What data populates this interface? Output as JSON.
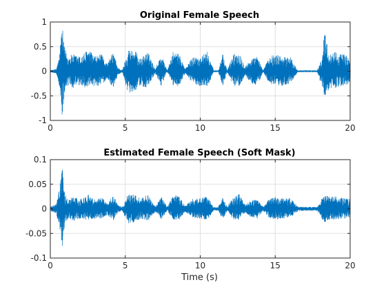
{
  "chart_data": [
    {
      "type": "line",
      "title": "Original Female Speech",
      "xlabel": "",
      "ylabel": "",
      "xlim": [
        0,
        20
      ],
      "ylim": [
        -1,
        1
      ],
      "xticks": [
        0,
        5,
        10,
        15,
        20
      ],
      "xtick_labels": [
        "0",
        "5",
        "10",
        "15",
        "20"
      ],
      "yticks": [
        -1,
        -0.5,
        0,
        0.5,
        1
      ],
      "ytick_labels": [
        "-1",
        "-0.5",
        "0",
        "0.5",
        "1"
      ],
      "grid": true,
      "series_color": "#0072BD",
      "envelope": {
        "x": [
          0,
          0.4,
          0.6,
          0.72,
          0.8,
          0.9,
          1.0,
          1.2,
          1.5,
          2.0,
          2.5,
          3.0,
          3.4,
          3.8,
          4.2,
          4.5,
          4.8,
          5.2,
          5.6,
          6.0,
          6.5,
          7.0,
          7.4,
          7.8,
          8.2,
          8.6,
          9.0,
          9.5,
          10.0,
          10.5,
          10.9,
          11.2,
          11.5,
          11.8,
          12.2,
          12.6,
          13.0,
          13.4,
          13.8,
          14.2,
          14.6,
          15.0,
          15.5,
          16.0,
          16.5,
          17.0,
          17.4,
          17.8,
          18.1,
          18.3,
          18.6,
          19.0,
          19.5,
          20.0
        ],
        "upper": [
          0.02,
          0.05,
          0.3,
          0.75,
          0.93,
          0.55,
          0.45,
          0.3,
          0.35,
          0.3,
          0.45,
          0.3,
          0.35,
          0.15,
          0.4,
          0.08,
          0.02,
          0.45,
          0.45,
          0.25,
          0.4,
          0.05,
          0.35,
          0.02,
          0.4,
          0.35,
          0.05,
          0.3,
          0.3,
          0.4,
          0.02,
          0.02,
          0.35,
          0.02,
          0.35,
          0.4,
          0.1,
          0.25,
          0.3,
          0.02,
          0.3,
          0.35,
          0.3,
          0.3,
          0.02,
          0.02,
          0.02,
          0.02,
          0.25,
          0.85,
          0.35,
          0.4,
          0.35,
          0.3
        ],
        "lower": [
          -0.02,
          -0.05,
          -0.3,
          -0.7,
          -1.0,
          -0.6,
          -0.45,
          -0.3,
          -0.35,
          -0.3,
          -0.35,
          -0.3,
          -0.3,
          -0.15,
          -0.35,
          -0.08,
          -0.02,
          -0.45,
          -0.4,
          -0.3,
          -0.35,
          -0.05,
          -0.3,
          -0.02,
          -0.3,
          -0.3,
          -0.05,
          -0.25,
          -0.3,
          -0.3,
          -0.02,
          -0.02,
          -0.3,
          -0.02,
          -0.3,
          -0.3,
          -0.1,
          -0.25,
          -0.3,
          -0.02,
          -0.25,
          -0.3,
          -0.3,
          -0.25,
          -0.02,
          -0.02,
          -0.02,
          -0.02,
          -0.3,
          -0.55,
          -0.35,
          -0.35,
          -0.3,
          -0.25
        ]
      }
    },
    {
      "type": "line",
      "title": "Estimated Female Speech (Soft Mask)",
      "xlabel": "Time (s)",
      "ylabel": "",
      "xlim": [
        0,
        20
      ],
      "ylim": [
        -0.1,
        0.1
      ],
      "xticks": [
        0,
        5,
        10,
        15,
        20
      ],
      "xtick_labels": [
        "0",
        "5",
        "10",
        "15",
        "20"
      ],
      "yticks": [
        -0.1,
        -0.05,
        0,
        0.05,
        0.1
      ],
      "ytick_labels": [
        "-0.1",
        "-0.05",
        "0",
        "0.05",
        "0.1"
      ],
      "grid": true,
      "series_color": "#0072BD",
      "envelope": {
        "x": [
          0,
          0.4,
          0.6,
          0.72,
          0.8,
          0.9,
          1.0,
          1.2,
          1.5,
          2.0,
          2.5,
          3.0,
          3.4,
          3.8,
          4.2,
          4.5,
          4.8,
          5.2,
          5.6,
          6.0,
          6.5,
          7.0,
          7.4,
          7.8,
          8.2,
          8.6,
          9.0,
          9.5,
          10.0,
          10.5,
          10.9,
          11.2,
          11.5,
          11.8,
          12.2,
          12.6,
          13.0,
          13.4,
          13.8,
          14.2,
          14.6,
          15.0,
          15.5,
          16.0,
          16.5,
          17.0,
          17.4,
          17.8,
          18.1,
          18.3,
          18.6,
          19.0,
          19.5,
          20.0
        ],
        "upper": [
          0.004,
          0.01,
          0.04,
          0.07,
          0.085,
          0.05,
          0.03,
          0.02,
          0.025,
          0.02,
          0.03,
          0.02,
          0.025,
          0.012,
          0.028,
          0.008,
          0.004,
          0.03,
          0.03,
          0.02,
          0.03,
          0.006,
          0.025,
          0.004,
          0.03,
          0.025,
          0.006,
          0.02,
          0.022,
          0.025,
          0.004,
          0.004,
          0.025,
          0.004,
          0.025,
          0.03,
          0.008,
          0.018,
          0.02,
          0.004,
          0.02,
          0.025,
          0.022,
          0.022,
          0.005,
          0.004,
          0.004,
          0.004,
          0.02,
          0.03,
          0.025,
          0.025,
          0.022,
          0.02
        ],
        "lower": [
          -0.004,
          -0.01,
          -0.04,
          -0.06,
          -0.08,
          -0.05,
          -0.03,
          -0.02,
          -0.025,
          -0.02,
          -0.025,
          -0.02,
          -0.02,
          -0.012,
          -0.025,
          -0.008,
          -0.004,
          -0.03,
          -0.028,
          -0.02,
          -0.025,
          -0.006,
          -0.022,
          -0.004,
          -0.022,
          -0.022,
          -0.006,
          -0.018,
          -0.02,
          -0.022,
          -0.004,
          -0.004,
          -0.022,
          -0.004,
          -0.022,
          -0.022,
          -0.008,
          -0.018,
          -0.02,
          -0.004,
          -0.018,
          -0.022,
          -0.02,
          -0.018,
          -0.005,
          -0.004,
          -0.004,
          -0.004,
          -0.02,
          -0.028,
          -0.022,
          -0.022,
          -0.02,
          -0.018
        ]
      }
    }
  ]
}
